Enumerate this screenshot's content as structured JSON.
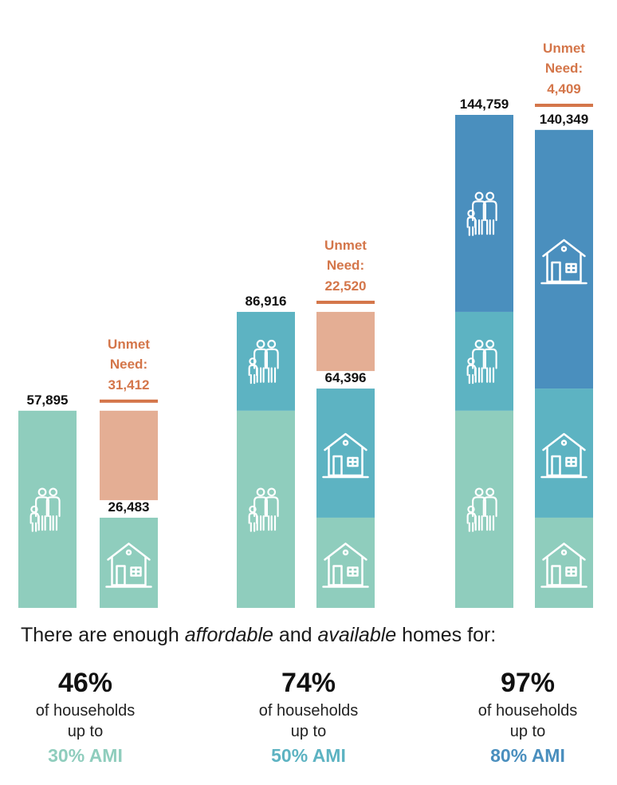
{
  "chart_data": {
    "type": "bar",
    "groups": [
      {
        "households": {
          "value": 57895,
          "label": "57,895",
          "segments": [
            57895
          ]
        },
        "homes": {
          "value": 26483,
          "label": "26,483",
          "segments": [
            26483
          ]
        },
        "unmet": {
          "line1": "Unmet",
          "line2": "Need:",
          "value": 31412,
          "label": "31,412"
        }
      },
      {
        "households": {
          "value": 86916,
          "label": "86,916",
          "segments": [
            57895,
            29021
          ]
        },
        "homes": {
          "value": 64396,
          "label": "64,396",
          "segments": [
            26483,
            37913
          ]
        },
        "unmet": {
          "line1": "Unmet",
          "line2": "Need:",
          "value": 22520,
          "label": "22,520"
        }
      },
      {
        "households": {
          "value": 144759,
          "label": "144,759",
          "segments": [
            57895,
            29021,
            57843
          ]
        },
        "homes": {
          "value": 140349,
          "label": "140,349",
          "segments": [
            26483,
            37913,
            75953
          ]
        },
        "unmet": {
          "line1": "Unmet",
          "line2": "Need:",
          "value": 4409,
          "label": "4,409"
        }
      }
    ],
    "tier_colors": [
      "#8fcdbd",
      "#5db3c2",
      "#4a8fbe"
    ],
    "unmet_color": "#e4ae94",
    "unmet_text_color": "#d4764a",
    "label_color": "#111111",
    "icons": [
      "family-icon",
      "house-icon"
    ],
    "ylim": [
      0,
      144759
    ]
  },
  "summary": {
    "intro_pre": "There are enough ",
    "intro_em1": "affordable",
    "intro_mid": " and ",
    "intro_em2": "available",
    "intro_post": " homes for:",
    "stats": [
      {
        "pct": "46%",
        "line1": "of households",
        "line2": "up to",
        "ami": "30% AMI",
        "color": "#8fcdbd"
      },
      {
        "pct": "74%",
        "line1": "of households",
        "line2": "up to",
        "ami": "50% AMI",
        "color": "#5db3c2"
      },
      {
        "pct": "97%",
        "line1": "of households",
        "line2": "up to",
        "ami": "80% AMI",
        "color": "#4a8fbe"
      }
    ]
  }
}
